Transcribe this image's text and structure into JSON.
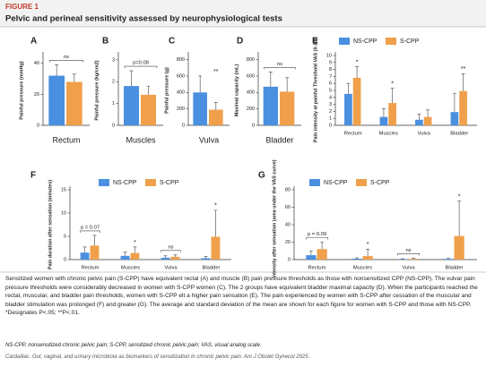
{
  "header": {
    "label": "FIGURE 1",
    "title": "Pelvic and perineal sensitivity assessed by neurophysiological tests"
  },
  "chart_data": [
    {
      "type": "bar",
      "panel": "A",
      "ylabel": "Painful pressure (mmHg)",
      "categories": [
        "Rectum"
      ],
      "ylim": [
        0,
        45
      ],
      "yticks": [
        0,
        20,
        40
      ],
      "series": [
        {
          "color": "#4a8fe0",
          "values": [
            32
          ],
          "errors": [
            7
          ]
        },
        {
          "color": "#f0a04b",
          "values": [
            28
          ],
          "errors": [
            5
          ]
        }
      ],
      "annotations": [
        {
          "text": "ns",
          "category": 0,
          "bracket": true
        }
      ]
    },
    {
      "type": "bar",
      "panel": "B",
      "ylabel": "Painful pressure (kg/cm2)",
      "categories": [
        "Muscles"
      ],
      "ylim": [
        0,
        3.2
      ],
      "yticks": [
        0,
        1,
        2,
        3
      ],
      "series": [
        {
          "color": "#4a8fe0",
          "values": [
            1.8
          ],
          "errors": [
            0.7
          ]
        },
        {
          "color": "#f0a04b",
          "values": [
            1.4
          ],
          "errors": [
            0.4
          ]
        }
      ],
      "annotations": [
        {
          "text": "p=0.08",
          "category": 0,
          "bracket": true
        }
      ]
    },
    {
      "type": "bar",
      "panel": "C",
      "ylabel": "Painful pressure (g)",
      "categories": [
        "Vulva"
      ],
      "ylim": [
        0,
        850
      ],
      "yticks": [
        0,
        200,
        400,
        600,
        800
      ],
      "series": [
        {
          "color": "#4a8fe0",
          "values": [
            400
          ],
          "errors": [
            200
          ]
        },
        {
          "color": "#f0a04b",
          "values": [
            190
          ],
          "errors": [
            90
          ]
        }
      ],
      "annotations": [
        {
          "text": "**",
          "category": 0,
          "bracket": false
        }
      ]
    },
    {
      "type": "bar",
      "panel": "D",
      "ylabel": "Maximal capacity (mL)",
      "categories": [
        "Bladder"
      ],
      "ylim": [
        0,
        850
      ],
      "yticks": [
        0,
        200,
        400,
        600,
        800
      ],
      "series": [
        {
          "color": "#4a8fe0",
          "values": [
            470
          ],
          "errors": [
            180
          ]
        },
        {
          "color": "#f0a04b",
          "values": [
            410
          ],
          "errors": [
            170
          ]
        }
      ],
      "annotations": [
        {
          "text": "ns",
          "category": 0,
          "bracket": true
        }
      ]
    },
    {
      "type": "bar",
      "panel": "E",
      "ylabel": "Pain intensity at painful Threshold VAS (0-10)",
      "categories": [
        "Rectum",
        "Muscles",
        "Vulva",
        "Bladder"
      ],
      "ylim": [
        0,
        10
      ],
      "yticks": [
        0,
        1,
        2,
        3,
        4,
        5,
        6,
        7,
        8,
        9,
        10
      ],
      "series": [
        {
          "name": "NS-CPP",
          "color": "#4a8fe0",
          "values": [
            4.5,
            1.2,
            0.8,
            1.9
          ],
          "errors": [
            1.5,
            1.2,
            0.8,
            2.7
          ]
        },
        {
          "name": "S-CPP",
          "color": "#f0a04b",
          "values": [
            6.8,
            3.2,
            1.2,
            4.9
          ],
          "errors": [
            1.6,
            2.1,
            1.0,
            2.5
          ]
        }
      ],
      "annotations": [
        {
          "text": "*",
          "category": 0,
          "bracket": false
        },
        {
          "text": "*",
          "category": 1,
          "bracket": false
        },
        {
          "text": "**",
          "category": 3,
          "bracket": false
        }
      ]
    },
    {
      "type": "bar",
      "panel": "F",
      "ylabel": "Pain duration after sensation (minutes)",
      "categories": [
        "Rectum",
        "Muscles",
        "Vulva",
        "Bladder"
      ],
      "ylim": [
        0,
        15
      ],
      "yticks": [
        0,
        5,
        10,
        15
      ],
      "series": [
        {
          "name": "NS-CPP",
          "color": "#4a8fe0",
          "values": [
            1.5,
            0.8,
            0.4,
            0.3
          ],
          "errors": [
            1.2,
            0.8,
            0.4,
            0.4
          ]
        },
        {
          "name": "S-CPP",
          "color": "#f0a04b",
          "values": [
            3,
            1.4,
            0.6,
            4.9
          ],
          "errors": [
            2.2,
            1.3,
            0.4,
            5.7
          ]
        }
      ],
      "annotations": [
        {
          "text": "p = 0.07",
          "category": 0,
          "bracket": true
        },
        {
          "text": "*",
          "category": 1,
          "bracket": false
        },
        {
          "text": "ns",
          "category": 2,
          "bracket": true
        },
        {
          "text": "*",
          "category": 3,
          "bracket": false
        }
      ]
    },
    {
      "type": "bar",
      "panel": "G",
      "ylabel": "Pain intensity after sensation (area under the VAS curve)",
      "categories": [
        "Rectum",
        "Muscles",
        "Vulva",
        "Bladder"
      ],
      "ylim": [
        0,
        80
      ],
      "yticks": [
        0,
        20,
        40,
        60,
        80
      ],
      "series": [
        {
          "name": "NS-CPP",
          "color": "#4a8fe0",
          "values": [
            5,
            1,
            0.5,
            0.8
          ],
          "errors": [
            5,
            1,
            0.5,
            1
          ]
        },
        {
          "name": "S-CPP",
          "color": "#f0a04b",
          "values": [
            12,
            4,
            0.8,
            27
          ],
          "errors": [
            8,
            8,
            0.8,
            40
          ]
        }
      ],
      "annotations": [
        {
          "text": "p = 0.09",
          "category": 0,
          "bracket": true
        },
        {
          "text": "*",
          "category": 1,
          "bracket": false
        },
        {
          "text": "ns",
          "category": 2,
          "bracket": true
        },
        {
          "text": "*",
          "category": 3,
          "bracket": false
        }
      ]
    }
  ],
  "caption": "Sensitized women with chronic pelvic pain (S-CPP) have equivalent rectal (A) and muscle (B) pain pressure thresholds as those with nonsensitized CPP (NS-CPP). The vulvar pain pressure thresholds were considerably decreased in women with S-CPP women (C). The 2 groups have equivalent bladder maximal capacity (D). When the participants reached the rectal, muscular, and bladder pain thresholds, women with S-CPP elt a higher pain sensation (E). The pain experienced by women with S-CPP after cessation of the muscular and bladder stimulation was prolonged (F) and greater (G). The average and standard deviation of the mean are shown for each figure for women with S-CPP and those with NS-CPP. *Designates P<.05; **P<.01.",
  "abbreviations": "NS-CPP, nonsensitized chronic pelvic pain; S-CPP, sensitized chronic pelvic pain; VAS, visual analog scale.",
  "citation": "Cardaillac. Gut, vaginal, and urinary microbiota as biomarkers of sensitization in chronic pelvic pain. Am J Obstet Gynecol 2025."
}
